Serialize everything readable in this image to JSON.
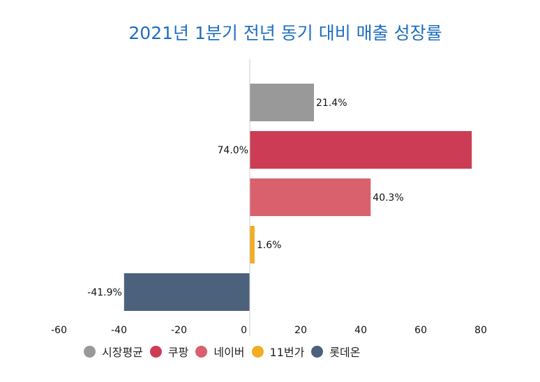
{
  "chart_data": {
    "type": "bar",
    "orientation": "horizontal",
    "title": "2021년 1분기 전년 동기 대비 매출 성장률",
    "categories": [
      "시장평균",
      "쿠팡",
      "네이버",
      "11번가",
      "롯데온"
    ],
    "values": [
      21.4,
      74.0,
      40.3,
      1.6,
      -41.9
    ],
    "data_labels": [
      "21.4%",
      "74.0%",
      "40.3%",
      "1.6%",
      "-41.9%"
    ],
    "colors": [
      "#999999",
      "#cc3d55",
      "#d9606d",
      "#f2ad22",
      "#4c617c"
    ],
    "xlim": [
      -60,
      80
    ],
    "x_ticks": [
      "-60",
      "-40",
      "-20",
      "0",
      "20",
      "40",
      "60",
      "80"
    ],
    "grid": false,
    "legend_position": "bottom",
    "title_color": "#1f6fbf"
  }
}
